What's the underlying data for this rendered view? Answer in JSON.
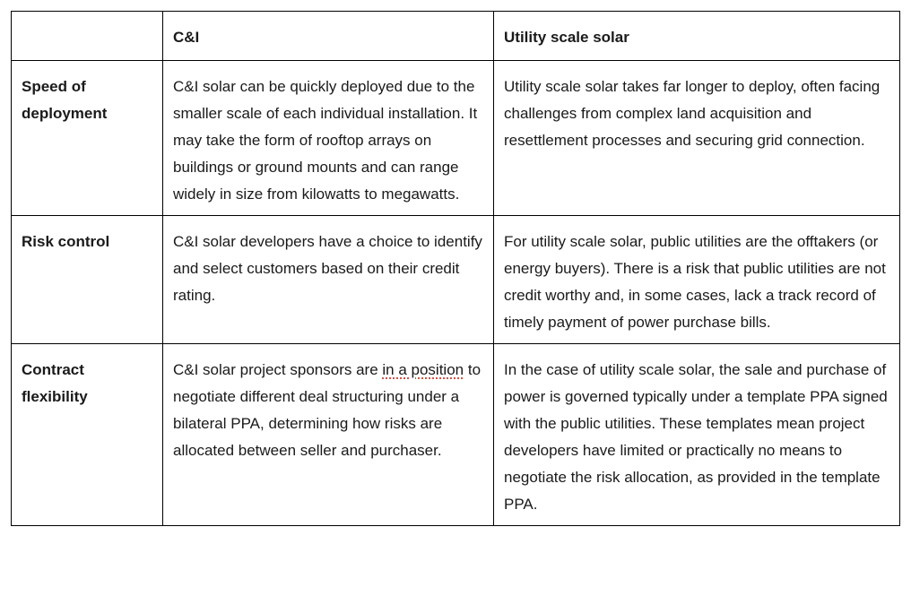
{
  "table": {
    "headers": [
      "",
      "C&I",
      "Utility scale solar"
    ],
    "rows": [
      {
        "label": "Speed of deployment",
        "ci": "C&I solar can be quickly deployed due to the smaller scale of each individual installation. It may take the form of rooftop arrays on buildings or ground mounts and can range widely in size from kilowatts to megawatts.",
        "utility": "Utility scale solar takes far longer to deploy, often facing challenges from complex land acquisition and resettlement processes and securing grid connection."
      },
      {
        "label": "Risk control",
        "ci": "C&I solar developers have a choice to identify and select customers based on their credit rating.",
        "utility": "For utility scale solar, public utilities are the offtakers (or energy buyers). There is a risk that public utilities are not credit worthy and, in some cases, lack a track record of timely payment of power purchase bills."
      },
      {
        "label": "Contract flexibility",
        "ci_pre": "C&I solar project sponsors are ",
        "ci_flagged": "in a position",
        "ci_post": " to negotiate different deal structuring under a bilateral PPA, determining how risks are allocated between seller and purchaser.",
        "utility": "In the case of utility scale solar, the sale and purchase of power is governed typically under a template PPA signed with the public utilities. These templates mean project developers have limited or practically no means to negotiate the risk allocation, as provided in the template PPA."
      }
    ]
  }
}
